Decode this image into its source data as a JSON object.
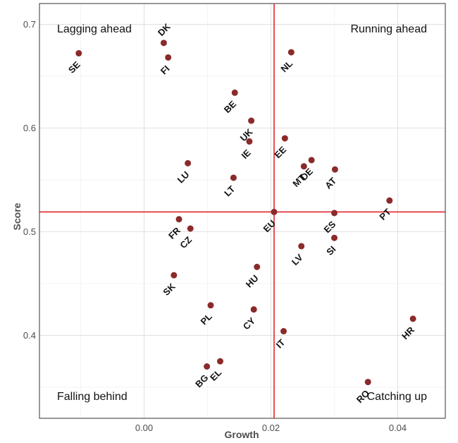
{
  "chart_data": {
    "type": "scatter",
    "title": "",
    "xlabel": "Growth",
    "ylabel": "Score",
    "xlim": [
      -0.0165,
      0.0475
    ],
    "ylim": [
      0.32,
      0.72
    ],
    "x_ticks": [
      0.0,
      0.02,
      0.04
    ],
    "x_tick_labels": [
      "0.00",
      "0.02",
      "0.04"
    ],
    "y_ticks": [
      0.4,
      0.5,
      0.6,
      0.7
    ],
    "y_tick_labels": [
      "0.4",
      "0.5",
      "0.6",
      "0.7"
    ],
    "grid": true,
    "point_color": "#8b2a2a",
    "reference_line_color": "#e0262b",
    "reference_lines": {
      "x": 0.0205,
      "y": 0.519
    },
    "quadrant_labels": {
      "top_left": "Lagging ahead",
      "top_right": "Running ahead",
      "bottom_left": "Falling behind",
      "bottom_right": "Catching up"
    },
    "points": [
      {
        "label": "SE",
        "x": -0.0103,
        "y": 0.672
      },
      {
        "label": "DK",
        "x": 0.0031,
        "y": 0.682
      },
      {
        "label": "FI",
        "x": 0.0038,
        "y": 0.668
      },
      {
        "label": "NL",
        "x": 0.0232,
        "y": 0.673
      },
      {
        "label": "BE",
        "x": 0.0143,
        "y": 0.634
      },
      {
        "label": "UK",
        "x": 0.0169,
        "y": 0.607
      },
      {
        "label": "IE",
        "x": 0.0166,
        "y": 0.587
      },
      {
        "label": "EE",
        "x": 0.0222,
        "y": 0.59
      },
      {
        "label": "DE",
        "x": 0.0264,
        "y": 0.569
      },
      {
        "label": "MT",
        "x": 0.0252,
        "y": 0.563
      },
      {
        "label": "AT",
        "x": 0.0301,
        "y": 0.56
      },
      {
        "label": "LU",
        "x": 0.0069,
        "y": 0.566
      },
      {
        "label": "LT",
        "x": 0.0141,
        "y": 0.552
      },
      {
        "label": "PT",
        "x": 0.0387,
        "y": 0.53
      },
      {
        "label": "EU",
        "x": 0.0205,
        "y": 0.519
      },
      {
        "label": "ES",
        "x": 0.03,
        "y": 0.518
      },
      {
        "label": "FR",
        "x": 0.0055,
        "y": 0.512
      },
      {
        "label": "CZ",
        "x": 0.0073,
        "y": 0.503
      },
      {
        "label": "SI",
        "x": 0.03,
        "y": 0.494
      },
      {
        "label": "LV",
        "x": 0.0248,
        "y": 0.486
      },
      {
        "label": "HU",
        "x": 0.0178,
        "y": 0.466
      },
      {
        "label": "SK",
        "x": 0.0047,
        "y": 0.458
      },
      {
        "label": "PL",
        "x": 0.0105,
        "y": 0.429
      },
      {
        "label": "CY",
        "x": 0.0173,
        "y": 0.425
      },
      {
        "label": "HR",
        "x": 0.0424,
        "y": 0.416
      },
      {
        "label": "IT",
        "x": 0.022,
        "y": 0.404
      },
      {
        "label": "BG",
        "x": 0.0099,
        "y": 0.37
      },
      {
        "label": "EL",
        "x": 0.012,
        "y": 0.375
      },
      {
        "label": "RO",
        "x": 0.0353,
        "y": 0.355
      }
    ]
  }
}
